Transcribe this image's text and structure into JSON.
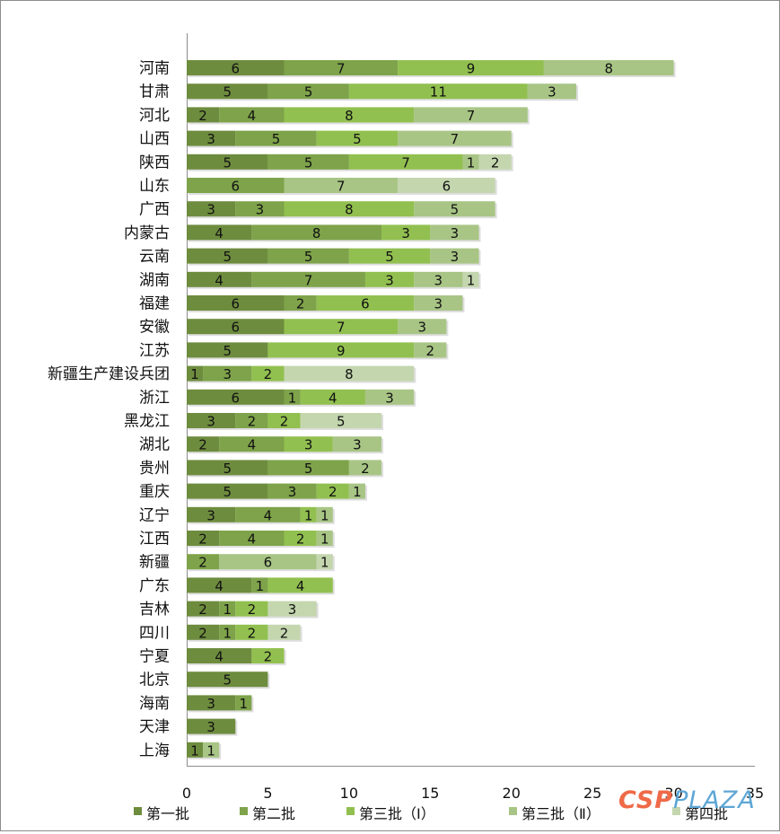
{
  "chart_data": {
    "type": "bar",
    "orientation": "horizontal",
    "stacked": true,
    "title": "",
    "xlabel": "",
    "ylabel": "",
    "xlim": [
      0,
      35
    ],
    "x_ticks": [
      0,
      5,
      10,
      15,
      20,
      25,
      30,
      35
    ],
    "grid": false,
    "legend_position": "bottom",
    "categories": [
      "河南",
      "甘肃",
      "河北",
      "山西",
      "陕西",
      "山东",
      "广西",
      "内蒙古",
      "云南",
      "湖南",
      "福建",
      "安徽",
      "江苏",
      "新疆生产建设兵团",
      "浙江",
      "黑龙江",
      "湖北",
      "贵州",
      "重庆",
      "辽宁",
      "江西",
      "新疆",
      "广东",
      "吉林",
      "四川",
      "宁夏",
      "北京",
      "海南",
      "天津",
      "上海"
    ],
    "series": [
      {
        "name": "第一批",
        "color": "#6e8c3e",
        "values": [
          6,
          5,
          2,
          3,
          5,
          0,
          3,
          4,
          5,
          4,
          6,
          6,
          5,
          1,
          6,
          3,
          2,
          5,
          5,
          3,
          2,
          0,
          4,
          2,
          2,
          4,
          5,
          3,
          3,
          1
        ]
      },
      {
        "name": "第二批",
        "color": "#7ea34a",
        "values": [
          7,
          5,
          4,
          5,
          5,
          6,
          3,
          8,
          5,
          7,
          2,
          0,
          0,
          3,
          1,
          2,
          4,
          5,
          3,
          4,
          4,
          2,
          1,
          1,
          1,
          0,
          0,
          1,
          0,
          0
        ]
      },
      {
        "name": "第三批（Ⅰ）",
        "color": "#92c050",
        "values": [
          9,
          11,
          8,
          5,
          7,
          0,
          8,
          3,
          5,
          3,
          6,
          7,
          9,
          2,
          4,
          2,
          3,
          0,
          2,
          1,
          2,
          0,
          4,
          2,
          2,
          2,
          0,
          0,
          0,
          0
        ]
      },
      {
        "name": "第三批（Ⅱ）",
        "color": "#a8c585",
        "values": [
          8,
          3,
          7,
          7,
          1,
          7,
          5,
          3,
          3,
          3,
          3,
          3,
          2,
          0,
          3,
          0,
          3,
          2,
          1,
          1,
          1,
          6,
          0,
          0,
          0,
          0,
          0,
          0,
          0,
          1
        ]
      },
      {
        "name": "第四批",
        "color": "#c4d6ae",
        "values": [
          0,
          0,
          0,
          0,
          2,
          6,
          0,
          0,
          0,
          1,
          0,
          0,
          0,
          8,
          0,
          5,
          0,
          0,
          0,
          0,
          0,
          1,
          0,
          3,
          2,
          0,
          0,
          0,
          0,
          0
        ]
      }
    ]
  },
  "watermark": {
    "part_a": "CSP",
    "part_b": "PLAZA"
  }
}
